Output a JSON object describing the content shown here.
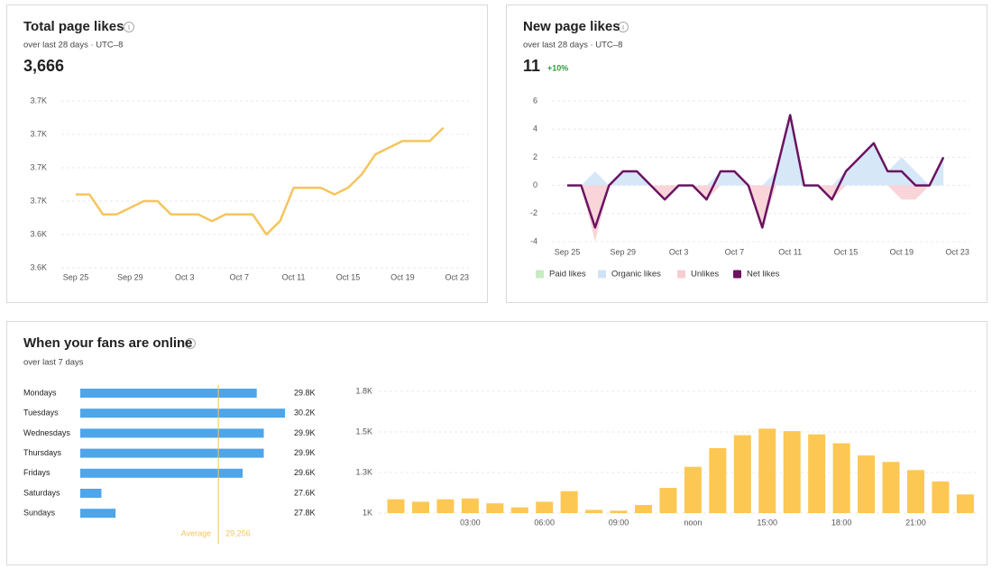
{
  "chart_data": [
    {
      "type": "line",
      "title": "Total page likes",
      "subtitle": "over last 28 days · UTC–8",
      "headline": "3,666",
      "color": "#f5c55c",
      "grid": true,
      "categories": [
        "Sep 25",
        null,
        null,
        null,
        "Sep 29",
        null,
        null,
        null,
        "Oct 3",
        null,
        null,
        null,
        "Oct 7",
        null,
        null,
        null,
        "Oct 11",
        null,
        null,
        null,
        "Oct 15",
        null,
        null,
        null,
        "Oct 19",
        null,
        null,
        null,
        "Oct 23"
      ],
      "values": [
        3652,
        3652,
        3646,
        3646,
        3648,
        3650,
        3650,
        3646,
        3646,
        3646,
        3644,
        3646,
        3646,
        3646,
        3640,
        3644,
        3654,
        3654,
        3654,
        3652,
        3654,
        3658,
        3664,
        3666,
        3668,
        3668,
        3668,
        3672,
        null
      ],
      "ylim": [
        3630,
        3680
      ],
      "yticks": [
        {
          "value": 3630,
          "label": "3.6K"
        },
        {
          "value": 3640,
          "label": "3.6K"
        },
        {
          "value": 3650,
          "label": "3.7K"
        },
        {
          "value": 3660,
          "label": "3.7K"
        },
        {
          "value": 3670,
          "label": "3.7K"
        },
        {
          "value": 3680,
          "label": "3.7K"
        }
      ]
    },
    {
      "type": "area",
      "title": "New page likes",
      "subtitle": "over last 28 days · UTC–8",
      "headline": "11",
      "change": "+10%",
      "grid": true,
      "categories": [
        "Sep 25",
        null,
        null,
        null,
        "Sep 29",
        null,
        null,
        null,
        "Oct 3",
        null,
        null,
        null,
        "Oct 7",
        null,
        null,
        null,
        "Oct 11",
        null,
        null,
        null,
        "Oct 15",
        null,
        null,
        null,
        "Oct 19",
        null,
        null,
        null,
        "Oct 23"
      ],
      "series": [
        {
          "name": "Paid likes",
          "color": "#c8ebc3",
          "mark": "area",
          "values": [
            0,
            0,
            0,
            0,
            0,
            0,
            0,
            0,
            0,
            0,
            0,
            0,
            0,
            0,
            0,
            0,
            0,
            0,
            0,
            0,
            0,
            0,
            0,
            0,
            0,
            0,
            0,
            0,
            null
          ]
        },
        {
          "name": "Organic likes",
          "color": "#cfe3f7",
          "mark": "area",
          "values": [
            0,
            0,
            1,
            0,
            1,
            1,
            0,
            0,
            0,
            0,
            0,
            1,
            1,
            0,
            0,
            1,
            5,
            0,
            0,
            0,
            1,
            2,
            3,
            1,
            2,
            1,
            0,
            2,
            null
          ]
        },
        {
          "name": "Unlikes",
          "color": "#f8cdd2",
          "mark": "area",
          "values": [
            0,
            0,
            -4,
            0,
            0,
            0,
            0,
            -1,
            0,
            0,
            -1,
            0,
            0,
            0,
            -3,
            0,
            0,
            0,
            0,
            -1,
            0,
            0,
            0,
            0,
            -1,
            -1,
            0,
            0,
            null
          ]
        },
        {
          "name": "Net likes",
          "color": "#6b1361",
          "mark": "line",
          "values": [
            0,
            0,
            -3,
            0,
            1,
            1,
            0,
            -1,
            0,
            0,
            -1,
            1,
            1,
            0,
            -3,
            1,
            5,
            0,
            0,
            -1,
            1,
            2,
            3,
            1,
            1,
            0,
            0,
            2,
            null
          ]
        }
      ],
      "ylim": [
        -4,
        6
      ],
      "yticks": [
        -4,
        -2,
        0,
        2,
        4,
        6
      ]
    },
    {
      "type": "bar",
      "orientation": "horizontal",
      "title": "When your fans are online",
      "subtitle": "over last 7 days",
      "color": "#4ea5e8",
      "categories": [
        "Mondays",
        "Tuesdays",
        "Wednesdays",
        "Thursdays",
        "Fridays",
        "Saturdays",
        "Sundays"
      ],
      "values": [
        29800,
        30200,
        29900,
        29900,
        29600,
        27600,
        27800
      ],
      "value_labels": [
        "29.8K",
        "30.2K",
        "29.9K",
        "29.9K",
        "29.6K",
        "27.6K",
        "27.8K"
      ],
      "xlim": [
        27300,
        30200
      ],
      "average": {
        "name": "Average",
        "value": 29256,
        "label": "29,256",
        "color": "#f5c55c"
      }
    },
    {
      "type": "bar",
      "orientation": "vertical",
      "color": "#fcc753",
      "grid": true,
      "categories": [
        null,
        null,
        null,
        "03:00",
        null,
        null,
        "06:00",
        null,
        null,
        "09:00",
        null,
        null,
        "noon",
        null,
        null,
        "15:00",
        null,
        null,
        "18:00",
        null,
        null,
        "21:00",
        null,
        null
      ],
      "values": [
        1085,
        1070,
        1085,
        1090,
        1060,
        1035,
        1070,
        1135,
        1020,
        1015,
        1050,
        1155,
        1285,
        1400,
        1480,
        1520,
        1505,
        1485,
        1430,
        1355,
        1315,
        1265,
        1195,
        1115
      ],
      "ylim": [
        1000,
        1750
      ],
      "yticks": [
        {
          "value": 1000,
          "label": "1K"
        },
        {
          "value": 1250,
          "label": "1.3K"
        },
        {
          "value": 1500,
          "label": "1.5K"
        },
        {
          "value": 1750,
          "label": "1.8K"
        }
      ]
    }
  ]
}
